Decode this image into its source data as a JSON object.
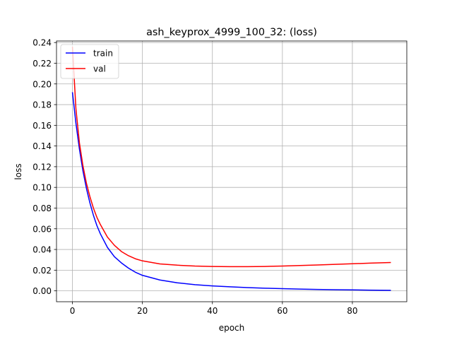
{
  "chart_data": {
    "type": "line",
    "title": "ash_keyprox_4999_100_32: (loss)",
    "xlabel": "epoch",
    "ylabel": "loss",
    "xlim": [
      -4.55,
      95.55
    ],
    "ylim": [
      -0.0105,
      0.2415
    ],
    "xticks": [
      0,
      20,
      40,
      60,
      80
    ],
    "yticks": [
      0.0,
      0.02,
      0.04,
      0.06,
      0.08,
      0.1,
      0.12,
      0.14,
      0.16,
      0.18,
      0.2,
      0.22,
      0.24
    ],
    "x_tick_labels": [
      "0",
      "20",
      "40",
      "60",
      "80"
    ],
    "y_tick_labels": [
      "0.00",
      "0.02",
      "0.04",
      "0.06",
      "0.08",
      "0.10",
      "0.12",
      "0.14",
      "0.16",
      "0.18",
      "0.20",
      "0.22",
      "0.24"
    ],
    "grid": true,
    "legend_position": "top-left",
    "series": [
      {
        "name": "train",
        "color": "#0000ff",
        "x": [
          0,
          1,
          2,
          3,
          4,
          5,
          6,
          7,
          8,
          10,
          12,
          14,
          16,
          18,
          20,
          25,
          30,
          35,
          40,
          45,
          50,
          55,
          60,
          65,
          70,
          75,
          80,
          85,
          91
        ],
        "y": [
          0.192,
          0.162,
          0.137,
          0.116,
          0.099,
          0.085,
          0.073,
          0.063,
          0.055,
          0.042,
          0.033,
          0.027,
          0.022,
          0.018,
          0.015,
          0.0105,
          0.0078,
          0.006,
          0.0048,
          0.0039,
          0.0032,
          0.0026,
          0.0021,
          0.0017,
          0.0014,
          0.0011,
          0.0009,
          0.0007,
          0.0005
        ]
      },
      {
        "name": "val",
        "color": "#ff0000",
        "x": [
          0,
          1,
          2,
          3,
          4,
          5,
          6,
          7,
          8,
          10,
          12,
          14,
          16,
          18,
          20,
          25,
          30,
          35,
          40,
          45,
          50,
          55,
          60,
          65,
          70,
          75,
          80,
          85,
          91
        ],
        "y": [
          0.236,
          0.176,
          0.143,
          0.121,
          0.104,
          0.091,
          0.08,
          0.071,
          0.064,
          0.052,
          0.044,
          0.038,
          0.034,
          0.031,
          0.029,
          0.026,
          0.0248,
          0.024,
          0.0236,
          0.0234,
          0.0234,
          0.0236,
          0.024,
          0.0245,
          0.025,
          0.0256,
          0.0262,
          0.0268,
          0.0274
        ]
      }
    ]
  }
}
